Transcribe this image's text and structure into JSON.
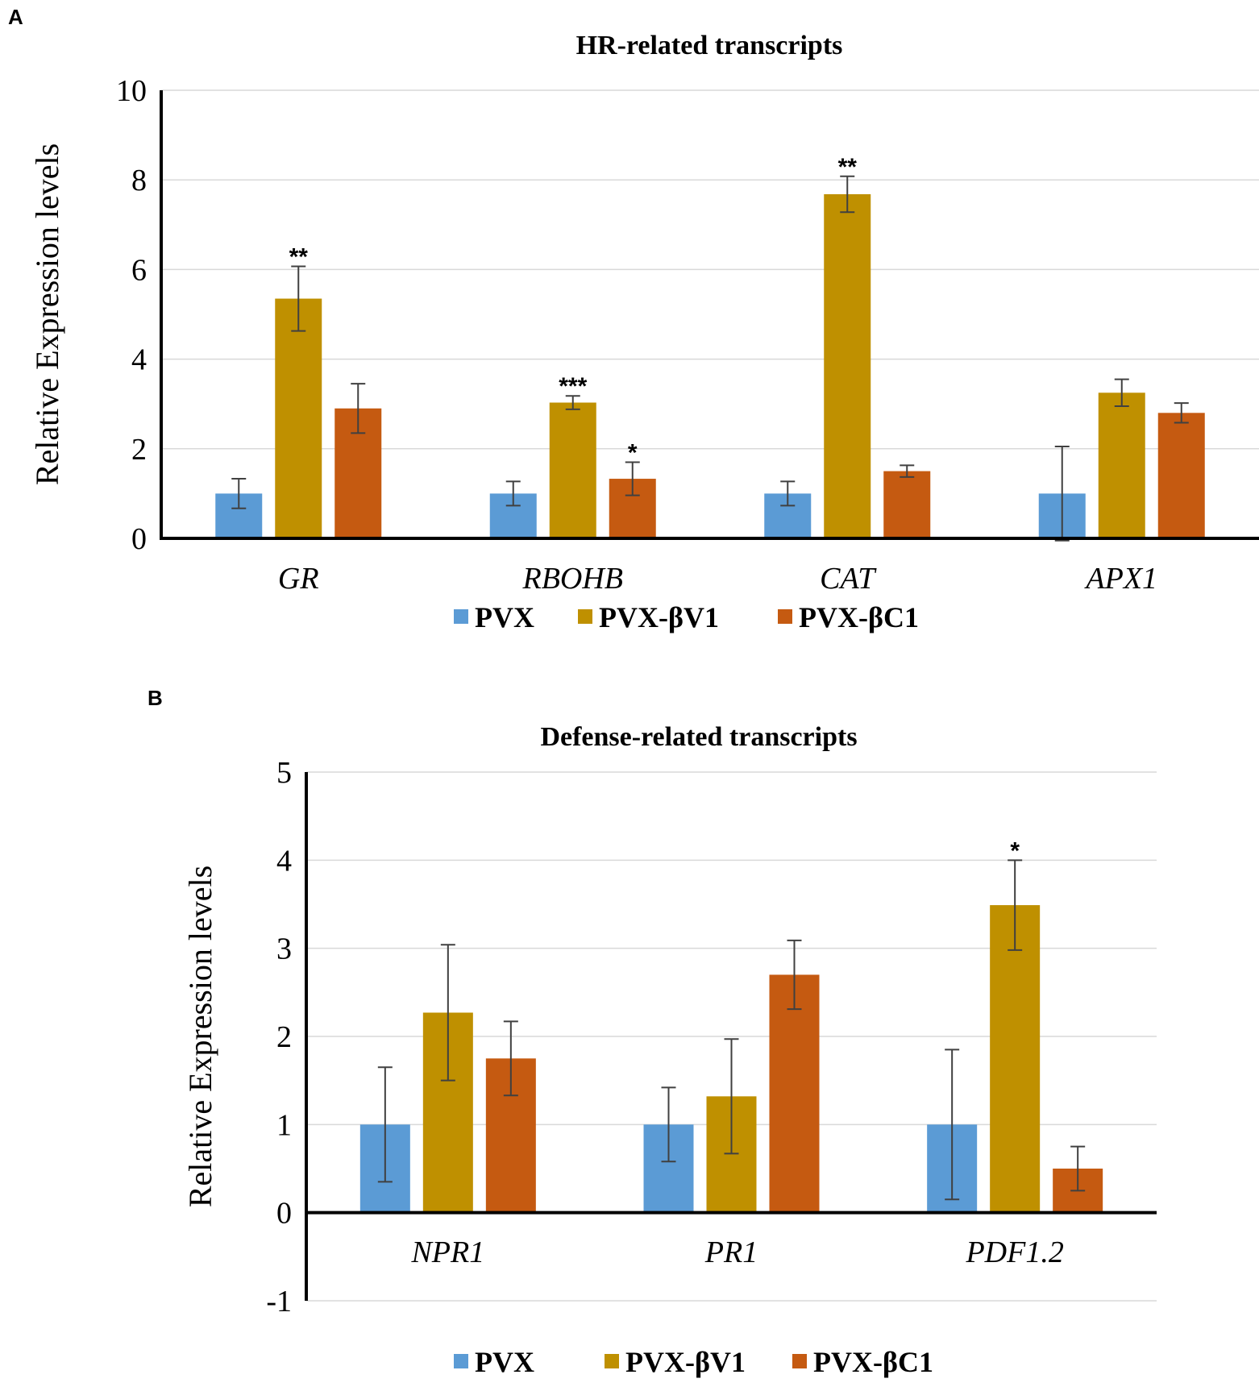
{
  "colors": {
    "PVX": "#5b9bd5",
    "PVX-βV1": "#bf9000",
    "PVX-βC1": "#c55a11",
    "axis": "#000000",
    "grid": "#d9d9d9",
    "error": "#404040"
  },
  "chart_data": [
    {
      "panel": "A",
      "type": "bar",
      "title": "HR-related transcripts",
      "xlabel": "",
      "ylabel": "Relative Expression levels",
      "ylim": [
        0,
        10
      ],
      "yticks": [
        "0",
        "2",
        "4",
        "6",
        "8",
        "10"
      ],
      "categories": [
        "GR",
        "RBOHB",
        "CAT",
        "APX1"
      ],
      "legend": [
        "PVX",
        "PVX-βV1",
        "PVX-βC1"
      ],
      "series": [
        {
          "name": "PVX",
          "values": [
            1.0,
            1.0,
            1.0,
            1.0
          ],
          "errors": [
            0.33,
            0.27,
            0.27,
            1.05
          ]
        },
        {
          "name": "PVX-βV1",
          "values": [
            5.35,
            3.03,
            7.68,
            3.25
          ],
          "errors": [
            0.72,
            0.15,
            0.4,
            0.3
          ]
        },
        {
          "name": "PVX-βC1",
          "values": [
            2.9,
            1.33,
            1.5,
            2.8
          ],
          "errors": [
            0.55,
            0.37,
            0.13,
            0.22
          ]
        }
      ],
      "annotations": [
        {
          "category": "GR",
          "series": "PVX-βV1",
          "text": "**"
        },
        {
          "category": "RBOHB",
          "series": "PVX-βV1",
          "text": "***"
        },
        {
          "category": "RBOHB",
          "series": "PVX-βC1",
          "text": "*"
        },
        {
          "category": "CAT",
          "series": "PVX-βV1",
          "text": "**"
        }
      ]
    },
    {
      "panel": "B",
      "type": "bar",
      "title": "Defense-related transcripts",
      "xlabel": "",
      "ylabel": "Relative Expression levels",
      "ylim": [
        -1,
        5
      ],
      "yticks": [
        "-1",
        "0",
        "1",
        "2",
        "3",
        "4",
        "5"
      ],
      "categories": [
        "NPR1",
        "PR1",
        "PDF1.2"
      ],
      "legend": [
        "PVX",
        "PVX-βV1",
        "PVX-βC1"
      ],
      "series": [
        {
          "name": "PVX",
          "values": [
            1.0,
            1.0,
            1.0
          ],
          "errors": [
            0.65,
            0.42,
            0.85
          ]
        },
        {
          "name": "PVX-βV1",
          "values": [
            2.27,
            1.32,
            3.49
          ],
          "errors": [
            0.77,
            0.65,
            0.51
          ]
        },
        {
          "name": "PVX-βC1",
          "values": [
            1.75,
            2.7,
            0.5
          ],
          "errors": [
            0.42,
            0.39,
            0.25
          ]
        }
      ],
      "annotations": [
        {
          "category": "PDF1.2",
          "series": "PVX-βV1",
          "text": "*"
        }
      ]
    }
  ]
}
